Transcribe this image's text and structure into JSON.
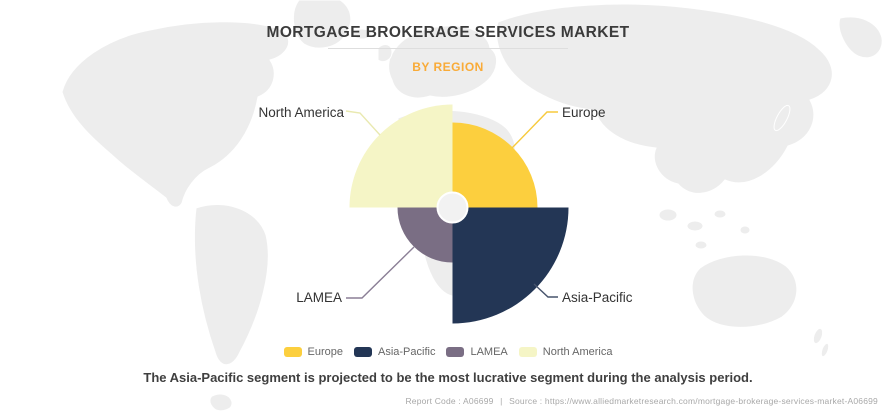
{
  "header": {
    "title": "MORTGAGE BROKERAGE SERVICES MARKET",
    "subtitle": "BY REGION",
    "subtitle_color": "#F9AB38"
  },
  "chart_data": {
    "type": "pie",
    "variant": "rose",
    "title": "MORTGAGE BROKERAGE SERVICES MARKET",
    "subtitle": "BY REGION",
    "legend_position": "bottom",
    "values_labeled": false,
    "center": {
      "x": 452.5,
      "y": 207.5,
      "hole_radius_px": 15,
      "hole_fill": "#f2f2f2"
    },
    "segments": [
      {
        "label": "Europe",
        "color": "#FCCF3E",
        "start_deg": -90,
        "end_deg": 0,
        "radius_px": 85,
        "rank": 2
      },
      {
        "label": "Asia-Pacific",
        "color": "#233655",
        "start_deg": 0,
        "end_deg": 90,
        "radius_px": 116,
        "rank": 1
      },
      {
        "label": "LAMEA",
        "color": "#7A6E84",
        "start_deg": 90,
        "end_deg": 180,
        "radius_px": 55,
        "rank": 4
      },
      {
        "label": "North America",
        "color": "#F5F5C6",
        "start_deg": 180,
        "end_deg": 270,
        "radius_px": 103,
        "rank": 3
      }
    ],
    "callouts": {
      "north_america": {
        "label": "North America",
        "line_color": "#E9E9B0"
      },
      "europe": {
        "label": "Europe",
        "line_color": "#F7CA3D"
      },
      "lamea": {
        "label": "LAMEA",
        "line_color": "#8B7F96"
      },
      "asia_pacific": {
        "label": "Asia-Pacific",
        "line_color": "#46536C"
      }
    }
  },
  "legend": {
    "items": [
      {
        "label": "Europe",
        "color": "#FCCF3E"
      },
      {
        "label": "Asia-Pacific",
        "color": "#233655"
      },
      {
        "label": "LAMEA",
        "color": "#7A6E84"
      },
      {
        "label": "North America",
        "color": "#F5F5C6"
      }
    ]
  },
  "statement": "The Asia-Pacific segment is projected to be the most lucrative segment during the analysis period.",
  "footer": {
    "report_code": "Report Code : A06699",
    "separator": "|",
    "source": "Source : https://www.alliedmarketresearch.com/mortgage-brokerage-services-market-A06699"
  }
}
